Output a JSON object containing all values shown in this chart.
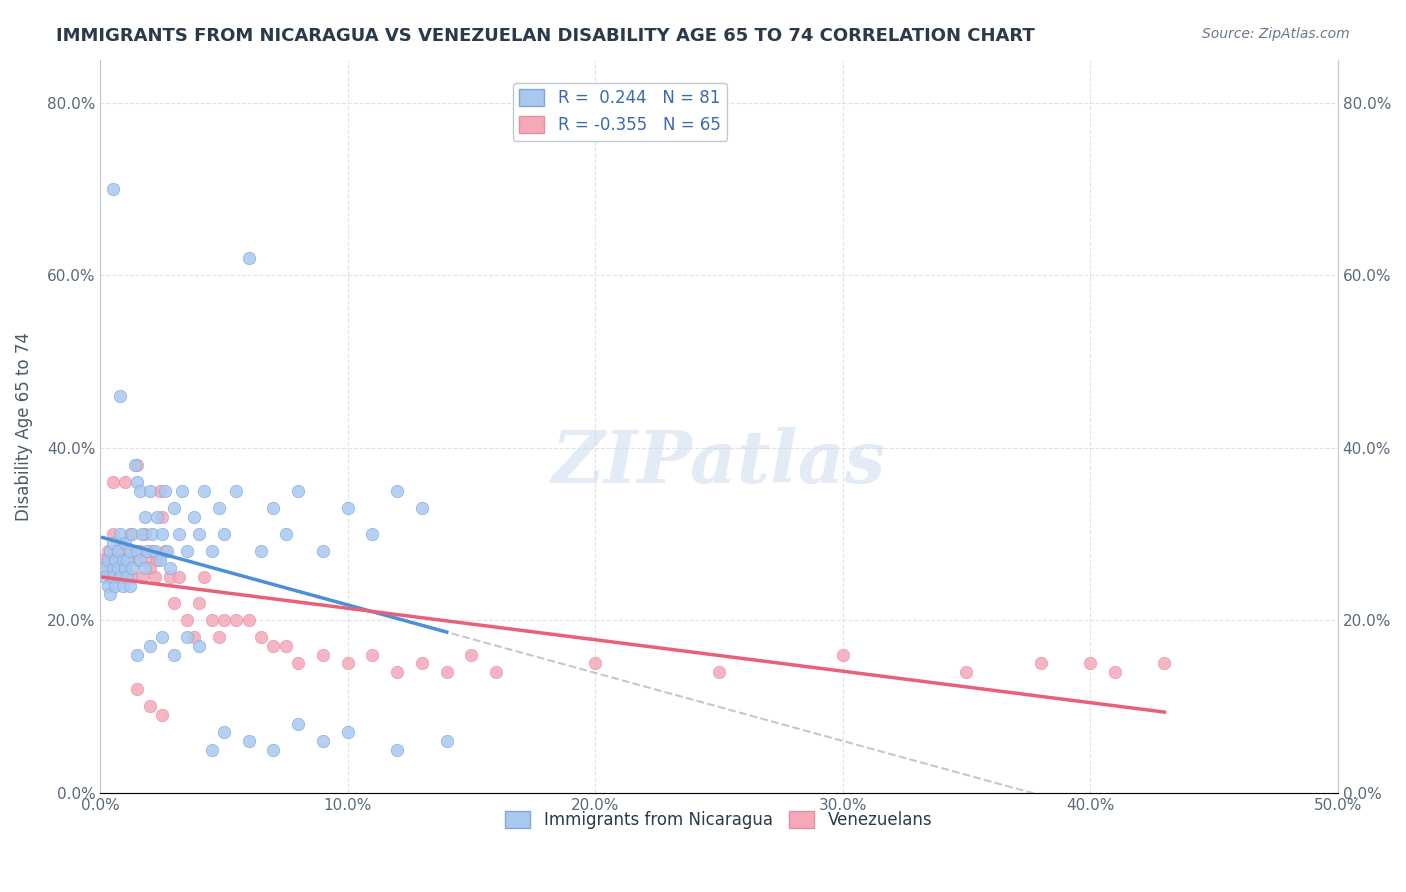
{
  "title": "IMMIGRANTS FROM NICARAGUA VS VENEZUELAN DISABILITY AGE 65 TO 74 CORRELATION CHART",
  "source": "Source: ZipAtlas.com",
  "xlabel": "",
  "ylabel": "Disability Age 65 to 74",
  "xlim": [
    0.0,
    0.5
  ],
  "ylim": [
    0.0,
    0.85
  ],
  "xticks": [
    0.0,
    0.1,
    0.2,
    0.3,
    0.4,
    0.5
  ],
  "yticks": [
    0.0,
    0.2,
    0.4,
    0.6,
    0.8
  ],
  "xtick_labels": [
    "0.0%",
    "10.0%",
    "20.0%",
    "30.0%",
    "40.0%",
    "50.0%"
  ],
  "ytick_labels": [
    "0.0%",
    "20.0%",
    "40.0%",
    "60.0%",
    "80.0%"
  ],
  "legend_r1": "R =  0.244   N = 81",
  "legend_r2": "R = -0.355   N = 65",
  "color_nicaragua": "#a8c8f0",
  "color_venezuela": "#f4a8b8",
  "color_line_nicaragua": "#4a90d9",
  "color_line_venezuela": "#e8607a",
  "color_trendline_ext": "#b0b0b0",
  "background_color": "#ffffff",
  "watermark_text": "ZIPatlas",
  "watermark_color": "#c8d8f0",
  "nicaragua_x": [
    0.001,
    0.002,
    0.003,
    0.003,
    0.004,
    0.004,
    0.005,
    0.005,
    0.005,
    0.006,
    0.006,
    0.007,
    0.007,
    0.008,
    0.008,
    0.009,
    0.009,
    0.01,
    0.01,
    0.011,
    0.011,
    0.012,
    0.012,
    0.013,
    0.013,
    0.014,
    0.015,
    0.015,
    0.016,
    0.016,
    0.017,
    0.018,
    0.018,
    0.019,
    0.02,
    0.021,
    0.022,
    0.023,
    0.024,
    0.025,
    0.026,
    0.027,
    0.028,
    0.03,
    0.032,
    0.033,
    0.035,
    0.038,
    0.04,
    0.042,
    0.045,
    0.048,
    0.05,
    0.055,
    0.06,
    0.065,
    0.07,
    0.075,
    0.08,
    0.09,
    0.1,
    0.11,
    0.12,
    0.13,
    0.005,
    0.008,
    0.015,
    0.02,
    0.025,
    0.03,
    0.035,
    0.04,
    0.045,
    0.05,
    0.06,
    0.07,
    0.08,
    0.09,
    0.1,
    0.12,
    0.14
  ],
  "nicaragua_y": [
    0.26,
    0.25,
    0.27,
    0.24,
    0.28,
    0.23,
    0.26,
    0.25,
    0.29,
    0.27,
    0.24,
    0.26,
    0.28,
    0.25,
    0.3,
    0.27,
    0.24,
    0.26,
    0.29,
    0.25,
    0.27,
    0.28,
    0.24,
    0.3,
    0.26,
    0.38,
    0.36,
    0.28,
    0.35,
    0.27,
    0.3,
    0.32,
    0.26,
    0.28,
    0.35,
    0.3,
    0.28,
    0.32,
    0.27,
    0.3,
    0.35,
    0.28,
    0.26,
    0.33,
    0.3,
    0.35,
    0.28,
    0.32,
    0.3,
    0.35,
    0.28,
    0.33,
    0.3,
    0.35,
    0.62,
    0.28,
    0.33,
    0.3,
    0.35,
    0.28,
    0.33,
    0.3,
    0.35,
    0.33,
    0.7,
    0.46,
    0.16,
    0.17,
    0.18,
    0.16,
    0.18,
    0.17,
    0.05,
    0.07,
    0.06,
    0.05,
    0.08,
    0.06,
    0.07,
    0.05,
    0.06
  ],
  "venezuela_x": [
    0.001,
    0.002,
    0.003,
    0.004,
    0.005,
    0.005,
    0.006,
    0.007,
    0.008,
    0.008,
    0.009,
    0.01,
    0.011,
    0.012,
    0.013,
    0.014,
    0.015,
    0.016,
    0.017,
    0.018,
    0.019,
    0.02,
    0.021,
    0.022,
    0.023,
    0.024,
    0.025,
    0.026,
    0.028,
    0.03,
    0.032,
    0.035,
    0.038,
    0.04,
    0.042,
    0.045,
    0.048,
    0.05,
    0.055,
    0.06,
    0.065,
    0.07,
    0.075,
    0.08,
    0.09,
    0.1,
    0.11,
    0.12,
    0.13,
    0.14,
    0.15,
    0.16,
    0.2,
    0.25,
    0.3,
    0.35,
    0.38,
    0.4,
    0.41,
    0.43,
    0.005,
    0.01,
    0.015,
    0.02,
    0.025
  ],
  "venezuela_y": [
    0.27,
    0.26,
    0.28,
    0.25,
    0.27,
    0.3,
    0.26,
    0.28,
    0.25,
    0.29,
    0.27,
    0.26,
    0.28,
    0.3,
    0.25,
    0.27,
    0.38,
    0.28,
    0.25,
    0.3,
    0.27,
    0.26,
    0.28,
    0.25,
    0.27,
    0.35,
    0.32,
    0.28,
    0.25,
    0.22,
    0.25,
    0.2,
    0.18,
    0.22,
    0.25,
    0.2,
    0.18,
    0.2,
    0.2,
    0.2,
    0.18,
    0.17,
    0.17,
    0.15,
    0.16,
    0.15,
    0.16,
    0.14,
    0.15,
    0.14,
    0.16,
    0.14,
    0.15,
    0.14,
    0.16,
    0.14,
    0.15,
    0.15,
    0.14,
    0.15,
    0.36,
    0.36,
    0.12,
    0.1,
    0.09
  ]
}
